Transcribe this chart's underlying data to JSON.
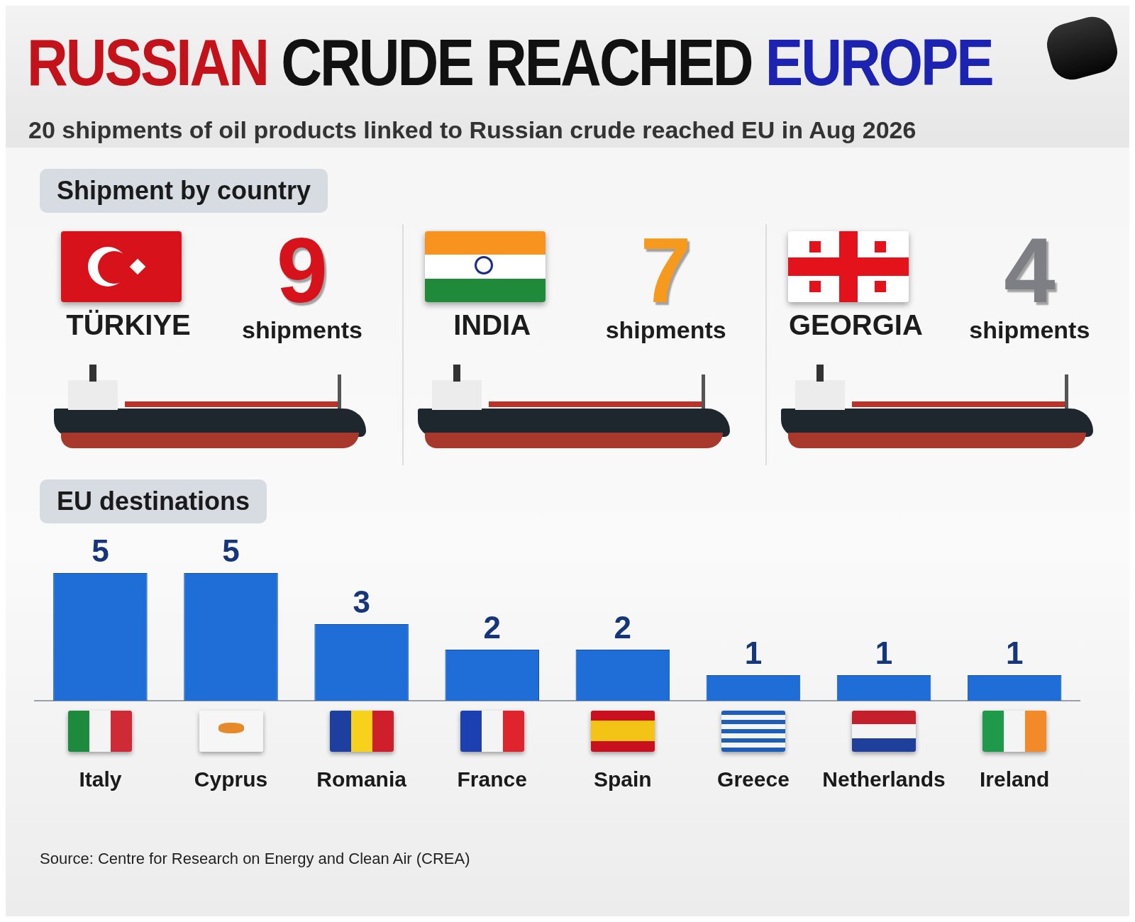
{
  "chart_data": [
    {
      "type": "other",
      "title": "RUSSIAN CRUDE REACHED EUROPE",
      "subtitle": "20 shipments of oil products linked to Russian crude reached EU in Aug 2026"
    },
    {
      "type": "other",
      "title": "Shipment by country",
      "categories": [
        "TÜRKIYE",
        "INDIA",
        "GEORGIA"
      ],
      "values": [
        9,
        7,
        4
      ],
      "colors": [
        "#d8121b",
        "#f59a1c",
        "#7d7f84"
      ],
      "data_labels": true,
      "annotations": [
        "shipments",
        "shipments",
        "shipments"
      ]
    },
    {
      "type": "bar",
      "title": "EU destinations",
      "categories": [
        "Italy",
        "Cyprus",
        "Romania",
        "France",
        "Spain",
        "Greece",
        "Netherlands",
        "Ireland"
      ],
      "values": [
        5,
        5,
        3,
        2,
        2,
        1,
        1,
        1
      ],
      "color": "#1f6ed8",
      "data_labels": true,
      "annotations": [
        "Source: Centre for Research on Energy and Clean Air (CREA)"
      ]
    }
  ]
}
